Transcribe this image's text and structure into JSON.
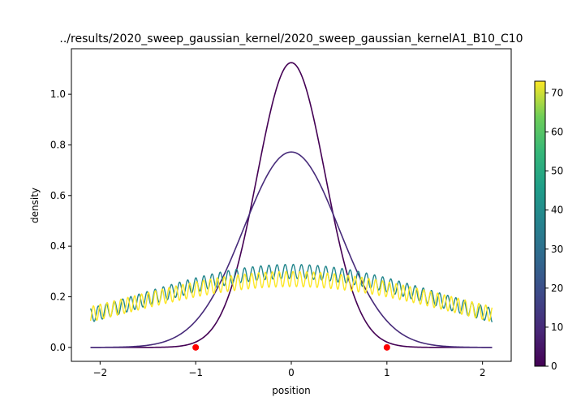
{
  "chart_data": {
    "type": "line",
    "title": "../results/2020_sweep_gaussian_kernel/2020_sweep_gaussian_kernelA1_B10_C10",
    "xlabel": "position",
    "ylabel": "density",
    "xlim": [
      -2.3,
      2.3
    ],
    "ylim": [
      -0.055,
      1.18
    ],
    "x_ticks": [
      -2,
      -1,
      0,
      1,
      2
    ],
    "x_tick_labels": [
      "−2",
      "−1",
      "0",
      "1",
      "2"
    ],
    "y_ticks": [
      0.0,
      0.2,
      0.4,
      0.6,
      0.8,
      1.0
    ],
    "y_tick_labels": [
      "0.0",
      "0.2",
      "0.4",
      "0.6",
      "0.8",
      "1.0"
    ],
    "grid": false,
    "series": [
      {
        "curve": "gaussian",
        "color_index": 0,
        "amplitude": 1.125,
        "sigma": 0.355,
        "x_range": [
          -2.1,
          2.1
        ]
      },
      {
        "curve": "gaussian",
        "color_index": 10,
        "amplitude": 0.772,
        "sigma": 0.5,
        "x_range": [
          -2.1,
          2.1
        ]
      },
      {
        "curve": "oscillating_gaussian",
        "color_index": 38,
        "amplitude": 0.3,
        "sigma": 1.6,
        "ripple": 0.028,
        "period": 0.085,
        "x_range": [
          -2.1,
          2.1
        ]
      },
      {
        "curve": "oscillating_gaussian",
        "color_index": 73,
        "amplitude": 0.27,
        "sigma": 1.75,
        "ripple": 0.03,
        "period": 0.072,
        "x_range": [
          -2.1,
          2.1
        ]
      }
    ],
    "points": {
      "color": "#ff0000",
      "x": [
        -1,
        1
      ],
      "y": [
        0,
        0
      ]
    },
    "colorbar": {
      "cmap": "viridis",
      "range": [
        0,
        73
      ],
      "ticks": [
        0,
        10,
        20,
        30,
        40,
        50,
        60,
        70
      ],
      "tick_labels": [
        "0",
        "10",
        "20",
        "30",
        "40",
        "50",
        "60",
        "70"
      ]
    }
  }
}
